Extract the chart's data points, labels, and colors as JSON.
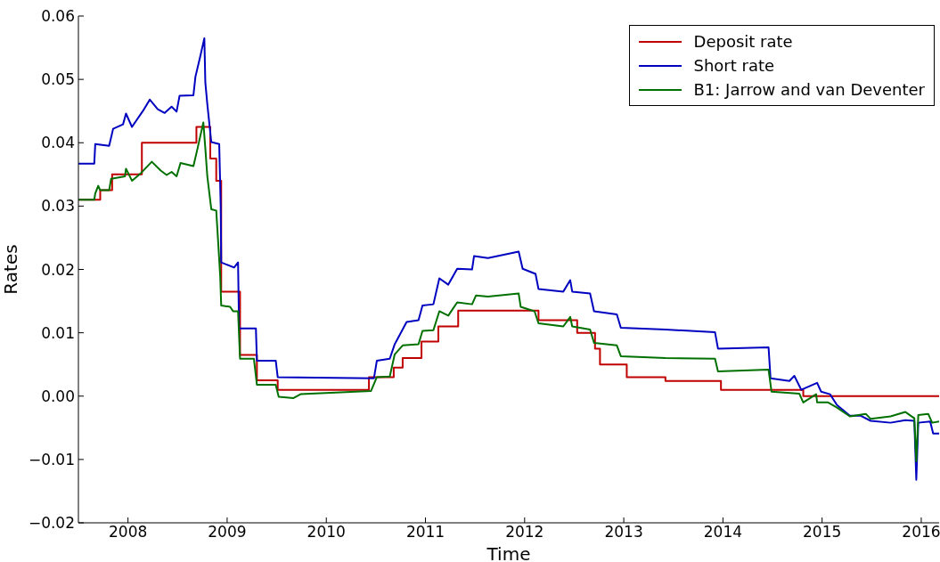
{
  "chart_data": {
    "type": "line",
    "xlabel": "Time",
    "ylabel": "Rates",
    "legend": "top right",
    "grid": false,
    "xlim": [
      2007.5,
      2016.18
    ],
    "xticks": [
      2008,
      2009,
      2010,
      2011,
      2012,
      2013,
      2014,
      2015,
      2016
    ],
    "ylim": [
      -0.02,
      0.06
    ],
    "yticks": [
      {
        "value": -0.02,
        "label": "−0.02"
      },
      {
        "value": -0.01,
        "label": "−0.01"
      },
      {
        "value": 0,
        "label": "0.00"
      },
      0.01,
      0.02,
      0.03,
      0.04,
      0.05,
      0.06
    ],
    "series": [
      {
        "name": "Deposit rate",
        "type": "step",
        "color": "#c00000",
        "x": [
          2007.5,
          2007.72,
          2007.84,
          2008.14,
          2008.69,
          2008.83,
          2008.89,
          2008.94,
          2009.13,
          2009.3,
          2009.51,
          2010.43,
          2010.68,
          2010.77,
          2010.96,
          2011.13,
          2011.33,
          2012.14,
          2012.53,
          2012.71,
          2012.76,
          2013.03,
          2013.42,
          2013.98,
          2014.81,
          2016.18
        ],
        "values": [
          0.031,
          0.0325,
          0.035,
          0.04,
          0.0425,
          0.0375,
          0.034,
          0.0165,
          0.0065,
          0.0025,
          0.001,
          0.003,
          0.0045,
          0.006,
          0.0086,
          0.011,
          0.0135,
          0.012,
          0.01,
          0.0075,
          0.005,
          0.003,
          0.0024,
          0.001,
          0,
          0
        ]
      },
      {
        "name": "Short rate",
        "color": "#0000c0",
        "x": [
          2007.5,
          2007.66,
          2007.67,
          2007.81,
          2007.85,
          2007.95,
          2007.98,
          2008.04,
          2008.15,
          2008.22,
          2008.3,
          2008.37,
          2008.44,
          2008.49,
          2008.52,
          2008.66,
          2008.68,
          2008.73,
          2008.77,
          2008.78,
          2008.8,
          2008.84,
          2008.92,
          2008.935,
          2008.94,
          2009.07,
          2009.11,
          2009.12,
          2009.29,
          2009.3,
          2009.49,
          2009.51,
          2010.48,
          2010.51,
          2010.64,
          2010.69,
          2010.81,
          2010.93,
          2010.97,
          2011.08,
          2011.14,
          2011.23,
          2011.32,
          2011.47,
          2011.49,
          2011.63,
          2011.94,
          2011.98,
          2012.11,
          2012.14,
          2012.39,
          2012.46,
          2012.48,
          2012.66,
          2012.7,
          2012.93,
          2012.97,
          2013.42,
          2013.92,
          2013.95,
          2014.46,
          2014.48,
          2014.67,
          2014.72,
          2014.79,
          2014.95,
          2014.99,
          2015.08,
          2015.15,
          2015.28,
          2015.39,
          2015.49,
          2015.69,
          2015.84,
          2015.93,
          2015.95,
          2015.97,
          2016.09,
          2016.12,
          2016.18
        ],
        "values": [
          0.0367,
          0.0367,
          0.0398,
          0.0395,
          0.0422,
          0.0429,
          0.0446,
          0.0425,
          0.045,
          0.0468,
          0.0453,
          0.0447,
          0.0457,
          0.0449,
          0.0474,
          0.0475,
          0.0504,
          0.0537,
          0.0565,
          0.0495,
          0.0461,
          0.0401,
          0.0398,
          0.03,
          0.0211,
          0.0203,
          0.0211,
          0.0107,
          0.0107,
          0.0056,
          0.0056,
          0.003,
          0.0028,
          0.0056,
          0.0059,
          0.0082,
          0.0117,
          0.012,
          0.0143,
          0.0145,
          0.0186,
          0.0176,
          0.0201,
          0.02,
          0.0221,
          0.0218,
          0.0228,
          0.0201,
          0.0193,
          0.0169,
          0.0165,
          0.0183,
          0.0165,
          0.0162,
          0.0134,
          0.0129,
          0.0108,
          0.0105,
          0.0101,
          0.0075,
          0.0077,
          0.0028,
          0.0024,
          0.0032,
          0.001,
          0.0021,
          0.0007,
          0.0003,
          -0.0014,
          -0.0031,
          -0.0031,
          -0.0039,
          -0.0042,
          -0.0038,
          -0.0039,
          -0.0132,
          -0.0042,
          -0.004,
          -0.0059,
          -0.0059
        ]
      },
      {
        "name": "B1: Jarrow and van Deventer",
        "color": "#007000",
        "x": [
          2007.5,
          2007.66,
          2007.67,
          2007.7,
          2007.72,
          2007.81,
          2007.83,
          2007.97,
          2007.98,
          2008.04,
          2008.13,
          2008.24,
          2008.33,
          2008.39,
          2008.44,
          2008.49,
          2008.53,
          2008.66,
          2008.7,
          2008.76,
          2008.78,
          2008.8,
          2008.84,
          2008.89,
          2008.93,
          2008.94,
          2009.03,
          2009.06,
          2009.11,
          2009.13,
          2009.27,
          2009.3,
          2009.49,
          2009.52,
          2009.67,
          2009.74,
          2010.45,
          2010.51,
          2010.64,
          2010.69,
          2010.77,
          2010.93,
          2010.97,
          2011.08,
          2011.14,
          2011.23,
          2011.32,
          2011.47,
          2011.51,
          2011.63,
          2011.94,
          2011.96,
          2012.1,
          2012.14,
          2012.39,
          2012.46,
          2012.48,
          2012.66,
          2012.7,
          2012.93,
          2012.97,
          2013.42,
          2013.92,
          2013.95,
          2014.46,
          2014.49,
          2014.77,
          2014.81,
          2014.94,
          2014.95,
          2015.06,
          2015.15,
          2015.28,
          2015.44,
          2015.49,
          2015.69,
          2015.84,
          2015.93,
          2015.95,
          2015.97,
          2016.07,
          2016.11,
          2016.18
        ],
        "values": [
          0.031,
          0.031,
          0.032,
          0.0332,
          0.0325,
          0.0325,
          0.0343,
          0.0347,
          0.0359,
          0.034,
          0.0352,
          0.037,
          0.0356,
          0.0349,
          0.0354,
          0.0347,
          0.0368,
          0.0363,
          0.039,
          0.0432,
          0.0391,
          0.0347,
          0.0295,
          0.0293,
          0.019,
          0.0143,
          0.0141,
          0.0134,
          0.0134,
          0.0059,
          0.0059,
          0.0018,
          0.0018,
          -0.0001,
          -0.0003,
          0.0003,
          0.0008,
          0.003,
          0.0031,
          0.0066,
          0.008,
          0.0082,
          0.0103,
          0.0104,
          0.0134,
          0.0127,
          0.0148,
          0.0145,
          0.0159,
          0.0157,
          0.0162,
          0.0141,
          0.0134,
          0.0115,
          0.011,
          0.0125,
          0.011,
          0.0105,
          0.0084,
          0.008,
          0.0063,
          0.006,
          0.0059,
          0.0039,
          0.0042,
          0.0007,
          0.0004,
          -0.001,
          0.0003,
          -0.001,
          -0.001,
          -0.0018,
          -0.0032,
          -0.0028,
          -0.0036,
          -0.0032,
          -0.0025,
          -0.0035,
          -0.0103,
          -0.003,
          -0.0028,
          -0.0042,
          -0.004
        ]
      }
    ]
  }
}
